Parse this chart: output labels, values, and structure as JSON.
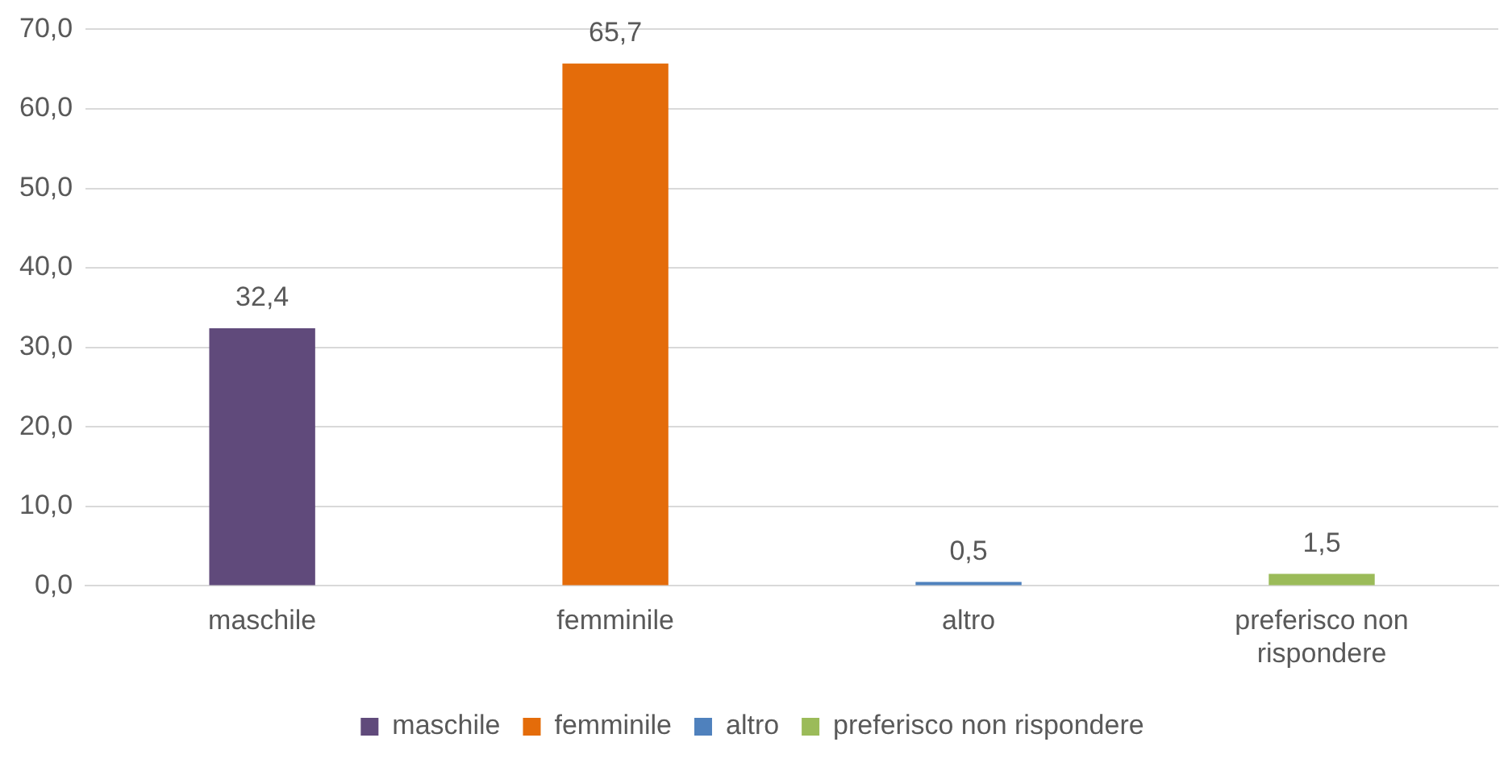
{
  "chart_data": {
    "type": "bar",
    "categories": [
      "maschile",
      "femminile",
      "altro",
      "preferisco non rispondere"
    ],
    "series": [
      {
        "name": "maschile",
        "color": "#604a7b",
        "values": [
          32.4,
          null,
          null,
          null
        ],
        "value_labels": [
          "32,4",
          null,
          null,
          null
        ]
      },
      {
        "name": "femminile",
        "color": "#e46c0a",
        "values": [
          null,
          65.7,
          null,
          null
        ],
        "value_labels": [
          null,
          "65,7",
          null,
          null
        ]
      },
      {
        "name": "altro",
        "color": "#4f81bd",
        "values": [
          null,
          null,
          0.5,
          null
        ],
        "value_labels": [
          null,
          null,
          "0,5",
          null
        ]
      },
      {
        "name": "preferisco non rispondere",
        "color": "#9bbb59",
        "values": [
          null,
          null,
          null,
          1.5
        ],
        "value_labels": [
          null,
          null,
          null,
          "1,5"
        ]
      }
    ],
    "ylim": [
      0,
      70
    ],
    "yticks": [
      {
        "value": 0,
        "label": "0,0"
      },
      {
        "value": 10,
        "label": "10,0"
      },
      {
        "value": 20,
        "label": "20,0"
      },
      {
        "value": 30,
        "label": "30,0"
      },
      {
        "value": 40,
        "label": "40,0"
      },
      {
        "value": 50,
        "label": "50,0"
      },
      {
        "value": 60,
        "label": "60,0"
      },
      {
        "value": 70,
        "label": "70,0"
      }
    ],
    "grid": "y",
    "legend": "bottom"
  }
}
